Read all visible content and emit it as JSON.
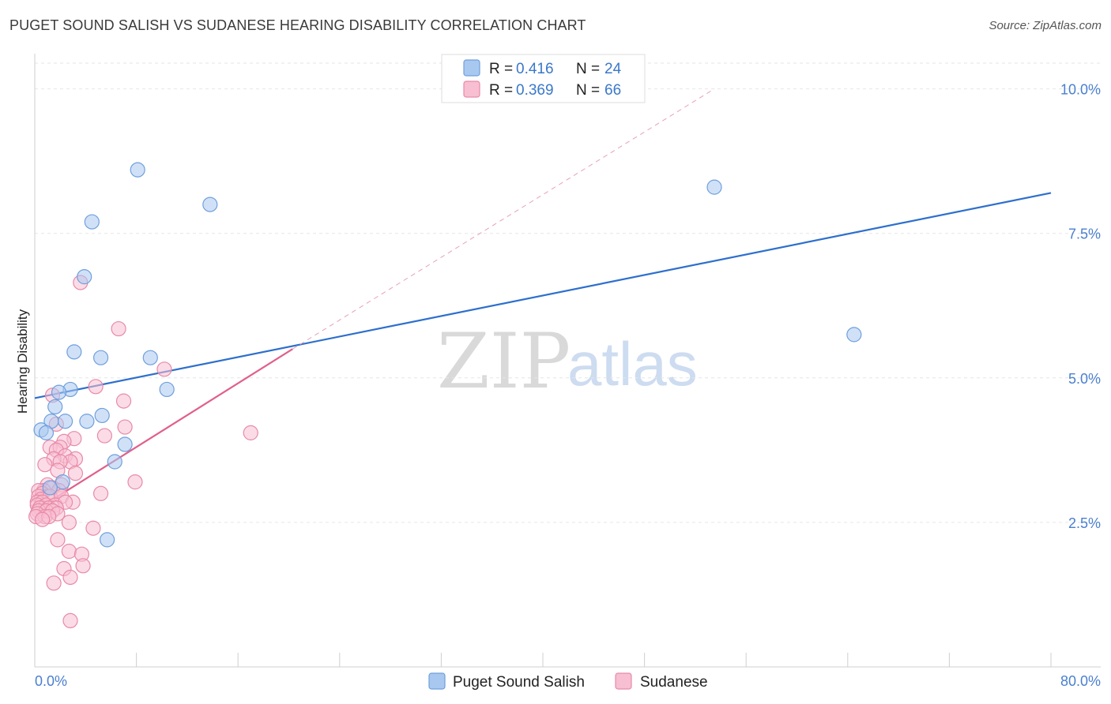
{
  "title": "PUGET SOUND SALISH VS SUDANESE HEARING DISABILITY CORRELATION CHART",
  "source": "Source: ZipAtlas.com",
  "watermark": {
    "zip": "ZIP",
    "atlas": "atlas"
  },
  "chart_data": {
    "type": "scatter",
    "title": "PUGET SOUND SALISH VS SUDANESE HEARING DISABILITY CORRELATION CHART",
    "xlabel": "",
    "ylabel": "Hearing Disability",
    "xlim": [
      0,
      80
    ],
    "ylim": [
      0,
      10.5
    ],
    "x_tick_labels": [
      "0.0%",
      "80.0%"
    ],
    "y_ticks": [
      {
        "value": 2.5,
        "label": "2.5%"
      },
      {
        "value": 5.0,
        "label": "5.0%"
      },
      {
        "value": 7.5,
        "label": "7.5%"
      },
      {
        "value": 10.0,
        "label": "10.0%"
      }
    ],
    "grid": true,
    "legend": {
      "position": "top-center",
      "entries": [
        {
          "name": "Puget Sound Salish",
          "r_label": "R =",
          "r": "0.416",
          "n_label": "N =",
          "n": "24",
          "color": "#a9c8f0",
          "stroke": "#6f9fdc"
        },
        {
          "name": "Sudanese",
          "r_label": "R =",
          "r": "0.369",
          "n_label": "N =",
          "n": "66",
          "color": "#f7bfd1",
          "stroke": "#e88aa8"
        }
      ]
    },
    "series": [
      {
        "name": "Puget Sound Salish",
        "color": "#a9c8f0",
        "stroke": "#6f9fdc",
        "trend_color": "#2d6fcd",
        "trend": {
          "x0": 0,
          "y0": 4.65,
          "x1": 80,
          "y1": 8.2,
          "dashed_extension": false
        },
        "points": [
          [
            8.1,
            8.6
          ],
          [
            13.8,
            8.0
          ],
          [
            4.5,
            7.7
          ],
          [
            3.9,
            6.75
          ],
          [
            53.5,
            8.3
          ],
          [
            64.5,
            5.75
          ],
          [
            3.1,
            5.45
          ],
          [
            5.2,
            5.35
          ],
          [
            9.1,
            5.35
          ],
          [
            2.8,
            4.8
          ],
          [
            1.9,
            4.75
          ],
          [
            10.4,
            4.8
          ],
          [
            1.6,
            4.5
          ],
          [
            1.3,
            4.25
          ],
          [
            4.1,
            4.25
          ],
          [
            2.4,
            4.25
          ],
          [
            5.3,
            4.35
          ],
          [
            0.5,
            4.1
          ],
          [
            0.9,
            4.05
          ],
          [
            7.1,
            3.85
          ],
          [
            6.3,
            3.55
          ],
          [
            2.2,
            3.2
          ],
          [
            1.2,
            3.1
          ],
          [
            5.7,
            2.2
          ]
        ]
      },
      {
        "name": "Sudanese",
        "color": "#f7bfd1",
        "stroke": "#e88aa8",
        "trend_color": "#e0608a",
        "trend": {
          "x0": 0,
          "y0": 2.7,
          "x1": 20.3,
          "y1": 5.5,
          "dash_x1": 53.5,
          "dash_y1": 10.0
        },
        "points": [
          [
            3.6,
            6.65
          ],
          [
            6.6,
            5.85
          ],
          [
            10.2,
            5.15
          ],
          [
            4.8,
            4.85
          ],
          [
            1.4,
            4.7
          ],
          [
            7.0,
            4.6
          ],
          [
            17.0,
            4.05
          ],
          [
            7.1,
            4.15
          ],
          [
            1.7,
            4.2
          ],
          [
            5.5,
            4.0
          ],
          [
            3.1,
            3.95
          ],
          [
            2.3,
            3.9
          ],
          [
            1.2,
            3.8
          ],
          [
            2.0,
            3.8
          ],
          [
            1.7,
            3.75
          ],
          [
            2.4,
            3.65
          ],
          [
            3.2,
            3.6
          ],
          [
            1.5,
            3.6
          ],
          [
            2.8,
            3.55
          ],
          [
            2.0,
            3.55
          ],
          [
            0.8,
            3.5
          ],
          [
            1.8,
            3.4
          ],
          [
            3.2,
            3.35
          ],
          [
            7.9,
            3.2
          ],
          [
            2.1,
            3.15
          ],
          [
            1.0,
            3.15
          ],
          [
            1.4,
            3.1
          ],
          [
            0.7,
            3.05
          ],
          [
            0.3,
            3.05
          ],
          [
            1.9,
            3.05
          ],
          [
            5.2,
            3.0
          ],
          [
            0.6,
            3.0
          ],
          [
            1.0,
            2.95
          ],
          [
            0.3,
            2.95
          ],
          [
            0.5,
            2.9
          ],
          [
            1.2,
            2.95
          ],
          [
            2.1,
            2.95
          ],
          [
            0.2,
            2.85
          ],
          [
            0.6,
            2.85
          ],
          [
            3.0,
            2.85
          ],
          [
            0.2,
            2.8
          ],
          [
            0.9,
            2.8
          ],
          [
            1.6,
            2.8
          ],
          [
            2.4,
            2.85
          ],
          [
            0.4,
            2.75
          ],
          [
            1.1,
            2.75
          ],
          [
            1.7,
            2.75
          ],
          [
            0.3,
            2.7
          ],
          [
            0.9,
            2.7
          ],
          [
            1.4,
            2.7
          ],
          [
            0.2,
            2.65
          ],
          [
            0.8,
            2.6
          ],
          [
            1.8,
            2.65
          ],
          [
            0.1,
            2.6
          ],
          [
            1.1,
            2.6
          ],
          [
            0.6,
            2.55
          ],
          [
            2.7,
            2.5
          ],
          [
            4.6,
            2.4
          ],
          [
            1.8,
            2.2
          ],
          [
            2.7,
            2.0
          ],
          [
            3.7,
            1.95
          ],
          [
            3.8,
            1.75
          ],
          [
            2.3,
            1.7
          ],
          [
            2.8,
            1.55
          ],
          [
            1.5,
            1.45
          ],
          [
            2.8,
            0.8
          ]
        ]
      }
    ]
  }
}
